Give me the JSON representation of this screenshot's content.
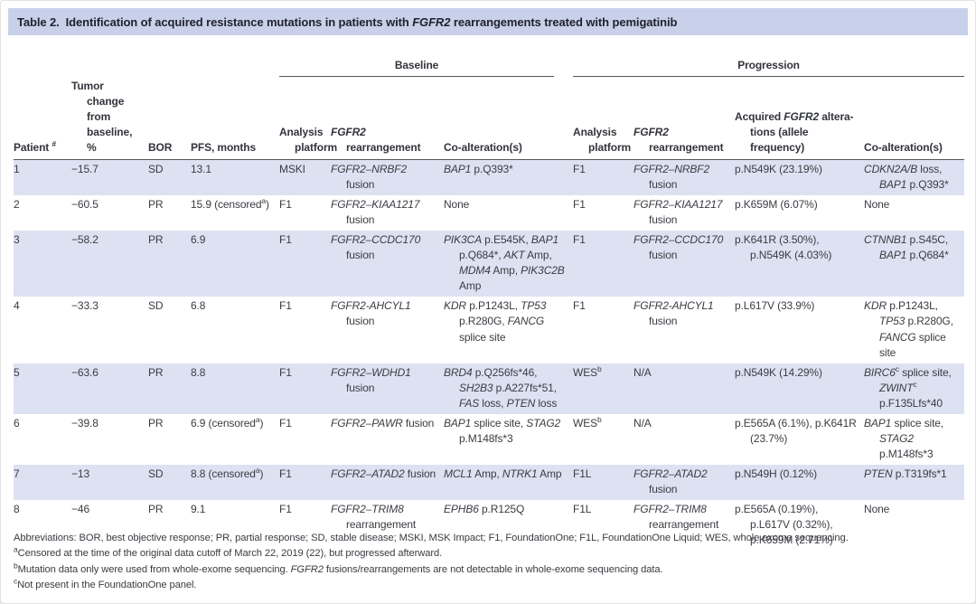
{
  "title": {
    "label": "Table 2.",
    "text": "Identification of acquired resistance mutations in patients with [i]FGFR2[/i] rearrangements treated with pemigatinib"
  },
  "colors": {
    "title_band": "#c8d0ea",
    "row_shade": "#dce2f2",
    "rule": "#55565a",
    "text": "#3a3c42"
  },
  "table": {
    "groups": [
      {
        "label": "Baseline"
      },
      {
        "label": "Progression"
      }
    ],
    "columns": [
      {
        "label": "Patient [sup]#[/sup]"
      },
      {
        "label": "Tumor change from baseline, %"
      },
      {
        "label": "BOR"
      },
      {
        "label": "PFS, months"
      },
      {
        "label": "Analysis platform"
      },
      {
        "label": "[i]FGFR2[/i] rearrangement"
      },
      {
        "label": "Co-alteration(s)"
      },
      {
        "label": "Analysis platform"
      },
      {
        "label": "[i]FGFR2[/i] rearrangement"
      },
      {
        "label": "Acquired [i]FGFR2[/i] altera-\ntions (allele frequency)"
      },
      {
        "label": "Co-alteration(s)"
      }
    ],
    "rows": [
      [
        "1",
        "−15.7",
        "SD",
        "13.1",
        "MSKI",
        "[i]FGFR2–NRBF2[/i] fusion",
        "[i]BAP1[/i] p.Q393*",
        "F1",
        "[i]FGFR2–NRBF2[/i] fusion",
        "p.N549K (23.19%)",
        "[i]CDKN2A/B[/i] loss, [i]BAP1[/i] p.Q393*"
      ],
      [
        "2",
        "−60.5",
        "PR",
        "15.9 (censored[sup]a[/sup])",
        "F1",
        "[i]FGFR2–KIAA1217[/i] fusion",
        "None",
        "F1",
        "[i]FGFR2–KIAA1217[/i] fusion",
        "p.K659M (6.07%)",
        "None"
      ],
      [
        "3",
        "−58.2",
        "PR",
        "6.9",
        "F1",
        "[i]FGFR2–CCDC170[/i] fusion",
        "[i]PIK3CA[/i] p.E545K, [i]BAP1[/i] p.Q684*, [i]AKT[/i] Amp, [i]MDM4[/i] Amp, [i]PIK3C2B[/i] Amp",
        "F1",
        "[i]FGFR2–CCDC170[/i] fusion",
        "p.K641R (3.50%), p.N549K (4.03%)",
        "[i]CTNNB1[/i] p.S45C, [i]BAP1[/i] p.Q684*"
      ],
      [
        "4",
        "−33.3",
        "SD",
        "6.8",
        "F1",
        "[i]FGFR2-AHCYL1[/i] fusion",
        "[i]KDR[/i] p.P1243L, [i]TP53[/i] p.R280G, [i]FANCG[/i] splice site",
        "F1",
        "[i]FGFR2-AHCYL1[/i] fusion",
        "p.L617V (33.9%)",
        "[i]KDR[/i] p.P1243L, [i]TP53[/i] p.R280G, [i]FANCG[/i] splice site"
      ],
      [
        "5",
        "−63.6",
        "PR",
        "8.8",
        "F1",
        "[i]FGFR2–WDHD1[/i] fusion",
        "[i]BRD4[/i] p.Q256fs*46, [i]SH2B3[/i] p.A227fs*51, [i]FAS[/i] loss, [i]PTEN[/i] loss",
        "WES[sup]b[/sup]",
        "N/A",
        "p.N549K (14.29%)",
        "[i]BIRC6[/i][sup]c[/sup] splice site, [i]ZWINT[/i][sup]c[/sup] p.F135Lfs*40"
      ],
      [
        "6",
        "−39.8",
        "PR",
        "6.9 (censored[sup]a[/sup])",
        "F1",
        "[i]FGFR2–PAWR[/i] fusion",
        "[i]BAP1[/i] splice site, [i]STAG2[/i] p.M148fs*3",
        "WES[sup]b[/sup]",
        "N/A",
        "p.E565A (6.1%), p.K641R (23.7%)",
        "[i]BAP1[/i] splice site, [i]STAG2[/i] p.M148fs*3"
      ],
      [
        "7",
        "−13",
        "SD",
        "8.8 (censored[sup]a[/sup])",
        "F1",
        "[i]FGFR2–ATAD2[/i] fusion",
        "[i]MCL1[/i] Amp, [i]NTRK1[/i] Amp",
        "F1L",
        "[i]FGFR2–ATAD2[/i] fusion",
        "p.N549H (0.12%)",
        "[i]PTEN[/i] p.T319fs*1"
      ],
      [
        "8",
        "−46",
        "PR",
        "9.1",
        "F1",
        "[i]FGFR2–TRIM8[/i] rearrangement",
        "[i]EPHB6[/i] p.R125Q",
        "F1L",
        "[i]FGFR2–TRIM8[/i] rearrangement",
        "p.E565A (0.19%), p.L617V (0.32%), p.K659M (2.71%)",
        "None"
      ]
    ]
  },
  "footnotes": [
    "Abbreviations: BOR, best objective response; PR, partial response; SD, stable disease; MSKI, MSK Impact; F1, FoundationOne; F1L, FoundationOne Liquid; WES, whole exome sequencing.",
    "[sup]a[/sup]Censored at the time of the original data cutoff of March 22, 2019 (22), but progressed afterward.",
    "[sup]b[/sup]Mutation data only were used from whole-exome sequencing. [i]FGFR2[/i] fusions/rearrangements are not detectable in whole-exome sequencing data.",
    "[sup]c[/sup]Not present in the FoundationOne panel."
  ]
}
